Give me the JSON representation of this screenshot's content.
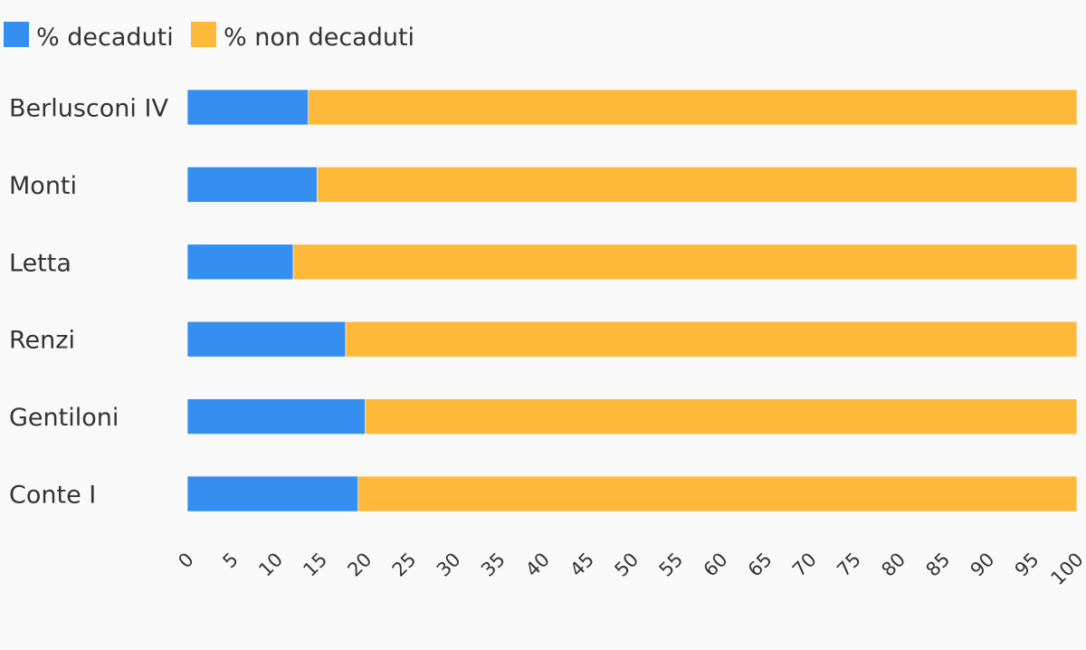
{
  "chart_data": {
    "type": "bar",
    "orientation": "horizontal",
    "stacked": true,
    "title": "",
    "xlabel": "",
    "ylabel": "",
    "xlim": [
      0,
      100
    ],
    "ticks": [
      "0",
      "5",
      "10",
      "15",
      "20",
      "25",
      "30",
      "35",
      "40",
      "45",
      "50",
      "55",
      "60",
      "65",
      "70",
      "75",
      "80",
      "85",
      "90",
      "95",
      "100"
    ],
    "categories": [
      "Berlusconi IV",
      "Monti",
      "Letta",
      "Renzi",
      "Gentiloni",
      "Conte I"
    ],
    "series": [
      {
        "name": "% decaduti",
        "color": "#358ff0",
        "values": [
          13.6,
          14.6,
          11.9,
          17.8,
          20.0,
          19.2
        ]
      },
      {
        "name": "% non decaduti",
        "color": "#ffb93a",
        "values": [
          86.4,
          85.4,
          88.1,
          82.2,
          80.0,
          80.8
        ]
      }
    ],
    "legend_position": "top-left",
    "grid": false
  }
}
